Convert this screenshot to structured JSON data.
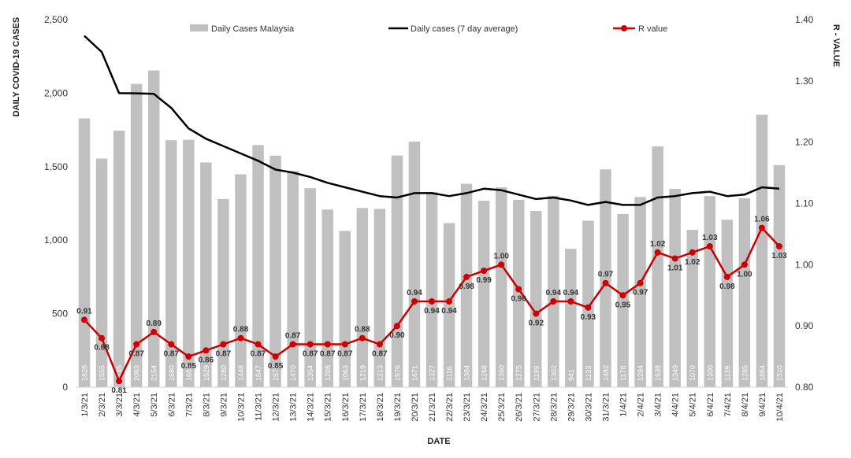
{
  "chart_data": {
    "type": "bar",
    "title": "",
    "xlabel": "DATE",
    "ylabel": "DAILY COVID-19 CASES",
    "y2label": "R - VALUE",
    "ylim": [
      0,
      2500
    ],
    "y2lim": [
      0.8,
      1.4
    ],
    "yticks": [
      "0",
      "500",
      "1,000",
      "1,500",
      "2,000",
      "2,500"
    ],
    "y2ticks": [
      "0.80",
      "0.90",
      "1.00",
      "1.10",
      "1.20",
      "1.30",
      "1.40"
    ],
    "grid": false,
    "legend_position": "top",
    "categories": [
      "1/3/21",
      "2/3/21",
      "3/3/21",
      "4/3/21",
      "5/3/21",
      "6/3/21",
      "7/3/21",
      "8/3/21",
      "9/3/21",
      "10/3/21",
      "11/3/21",
      "12/3/21",
      "13/3/21",
      "14/3/21",
      "15/3/21",
      "16/3/21",
      "17/3/21",
      "18/3/21",
      "19/3/21",
      "20/3/21",
      "21/3/21",
      "22/3/21",
      "23/3/21",
      "24/3/21",
      "25/3/21",
      "26/3/21",
      "27/3/21",
      "28/3/21",
      "29/3/21",
      "30/3/21",
      "31/3/21",
      "1/4/21",
      "2/4/21",
      "3/4/21",
      "4/4/21",
      "5/4/21",
      "6/4/21",
      "7/4/21",
      "8/4/21",
      "9/4/21",
      "10/4/21"
    ],
    "series": [
      {
        "name": "Daily Cases Malaysia",
        "type": "bar",
        "color": "#c0c0c0",
        "values": [
          1828,
          1555,
          1745,
          2063,
          2154,
          1680,
          1683,
          1529,
          1280,
          1448,
          1647,
          1575,
          1470,
          1354,
          1208,
          1063,
          1219,
          1213,
          1576,
          1671,
          1327,
          1116,
          1384,
          1268,
          1360,
          1275,
          1199,
          1302,
          941,
          1133,
          1482,
          1178,
          1294,
          1638,
          1349,
          1070,
          1300,
          1139,
          1285,
          1854,
          1510
        ],
        "labels": [
          "1828",
          "1555",
          "1745",
          "2063",
          "2154",
          "1680",
          "1683",
          "1529",
          "1280",
          "1448",
          "1647",
          "1575",
          "1470",
          "1354",
          "1208",
          "1063",
          "1219",
          "1213",
          "1576",
          "1671",
          "1327",
          "1116",
          "1384",
          "1268",
          "1360",
          "1275",
          "1199",
          "1302",
          "941",
          "1133",
          "1482",
          "1178",
          "1294",
          "1638",
          "1349",
          "1070",
          "1300",
          "1139",
          "1285",
          "1854",
          "1510"
        ]
      },
      {
        "name": "Daily cases (7 day average)",
        "type": "line",
        "color": "#000000",
        "values": [
          2390,
          2280,
          2000,
          1999,
          1995,
          1900,
          1760,
          1690,
          1640,
          1590,
          1540,
          1480,
          1460,
          1430,
          1390,
          1360,
          1330,
          1300,
          1290,
          1320,
          1320,
          1300,
          1320,
          1350,
          1340,
          1310,
          1280,
          1290,
          1270,
          1240,
          1260,
          1240,
          1240,
          1290,
          1300,
          1320,
          1330,
          1300,
          1310,
          1360,
          1350
        ]
      },
      {
        "name": "R value",
        "type": "line",
        "axis": "right",
        "color": "#cc0000",
        "values": [
          0.91,
          0.88,
          0.81,
          0.87,
          0.89,
          0.87,
          0.85,
          0.86,
          0.87,
          0.88,
          0.87,
          0.85,
          0.87,
          0.87,
          0.87,
          0.87,
          0.88,
          0.87,
          0.9,
          0.94,
          0.94,
          0.94,
          0.98,
          0.99,
          1.0,
          0.96,
          0.92,
          0.94,
          0.94,
          0.93,
          0.97,
          0.95,
          0.97,
          1.02,
          1.01,
          1.02,
          1.03,
          0.98,
          1.0,
          1.06,
          1.03
        ],
        "labels": [
          "0.91",
          "0.88",
          "0.81",
          "0.87",
          "0.89",
          "0.87",
          "0.85",
          "0.86",
          "0.87",
          "0.88",
          "0.87",
          "0.85",
          "0.87",
          "0.87",
          "0.87",
          "0.87",
          "0.88",
          "0.87",
          "0.90",
          "0.94",
          "0.94",
          "0.94",
          "0.98",
          "0.99",
          "1.00",
          "0.96",
          "0.92",
          "0.94",
          "0.94",
          "0.93",
          "0.97",
          "0.95",
          "0.97",
          "1.02",
          "1.01",
          "1.02",
          "1.03",
          "0.98",
          "1.00",
          "1.06",
          "1.03"
        ]
      }
    ]
  }
}
